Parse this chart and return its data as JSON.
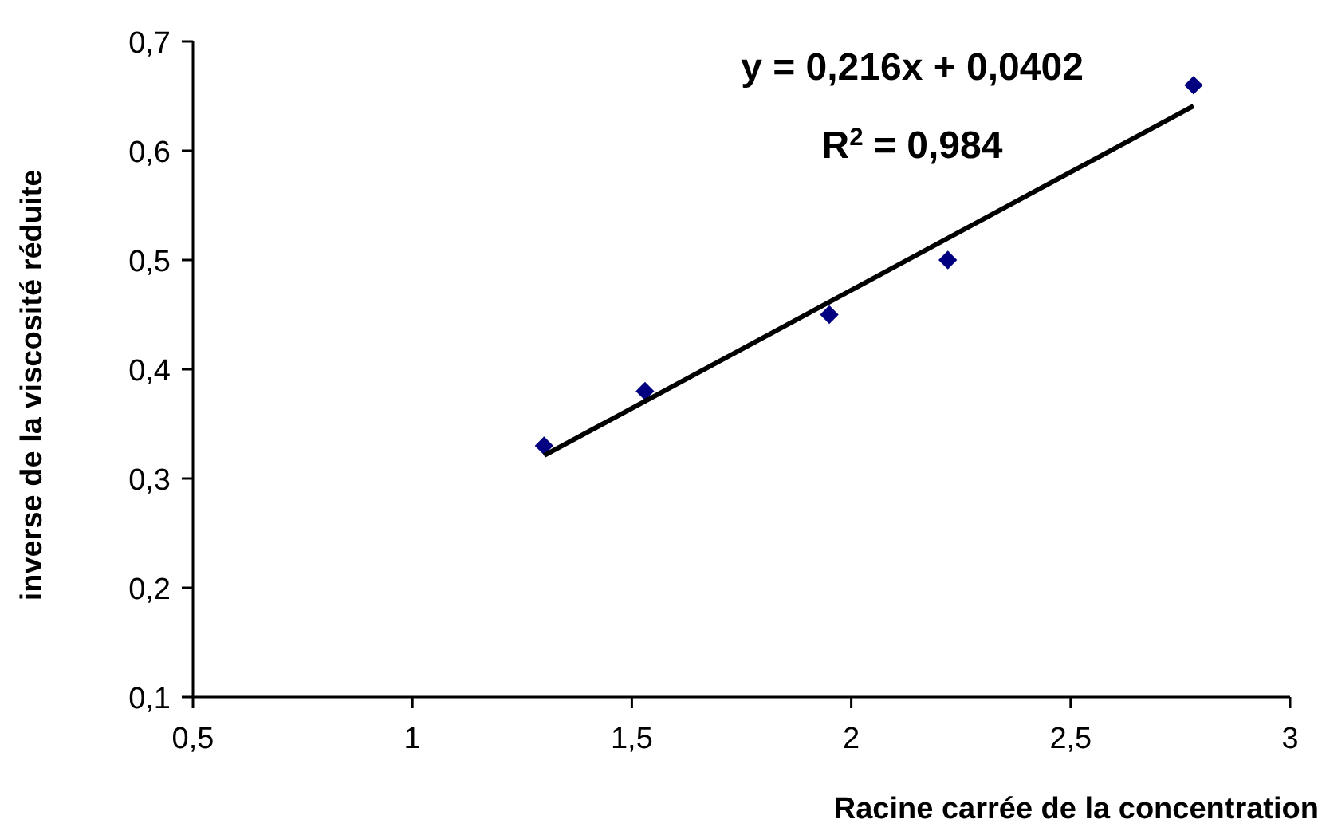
{
  "chart_data": {
    "type": "scatter",
    "xlabel": "Racine carrée de la concentration",
    "ylabel": "inverse de la viscosité réduite",
    "x": [
      1.3,
      1.53,
      1.95,
      2.22,
      2.78
    ],
    "series": [
      {
        "color": "#000080",
        "marker": "diamond",
        "values": [
          0.33,
          0.38,
          0.45,
          0.5,
          0.66
        ]
      },
      {
        "type": "line",
        "color": "#000000",
        "marker": "none",
        "line_style": "solid",
        "x": [
          1.3,
          2.78
        ],
        "values": [
          0.321,
          0.641
        ]
      }
    ],
    "xlim": [
      0.5,
      3
    ],
    "xticks": [
      {
        "value": 0.5,
        "label": "0,5"
      },
      1,
      {
        "value": 1.5,
        "label": "1,5"
      },
      2,
      {
        "value": 2.5,
        "label": "2,5"
      },
      3
    ],
    "ylim": [
      0.1,
      0.7
    ],
    "yticks": [
      {
        "value": 0.1,
        "label": "0,1"
      },
      {
        "value": 0.2,
        "label": "0,2"
      },
      {
        "value": 0.3,
        "label": "0,3"
      },
      {
        "value": 0.4,
        "label": "0,4"
      },
      {
        "value": 0.5,
        "label": "0,5"
      },
      {
        "value": 0.6,
        "label": "0,6"
      },
      {
        "value": 0.7,
        "label": "0,7"
      }
    ],
    "annotations": [
      "y = 0,216x + 0,0402",
      "R$^{2}$ = 0,984"
    ],
    "grid": false
  }
}
